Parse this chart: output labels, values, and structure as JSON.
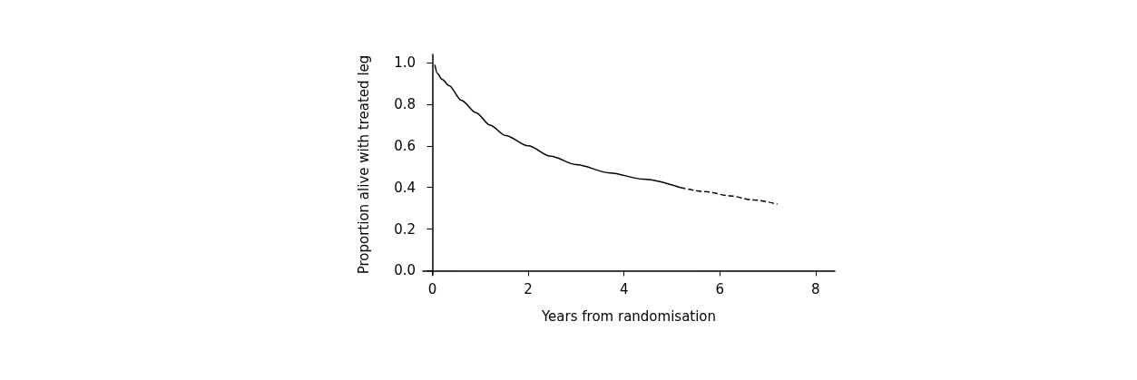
{
  "chart_data": {
    "type": "line",
    "xlabel": "Years from randomisation",
    "ylabel": "Proportion alive with treated leg",
    "xlim": [
      -0.2,
      8.4
    ],
    "xticks": [
      0,
      2,
      4,
      6,
      8
    ],
    "ylim": [
      -0.02,
      1.04
    ],
    "yticks": [
      {
        "value": 0,
        "label": "0.0"
      },
      {
        "value": 0.2,
        "label": "0.2"
      },
      {
        "value": 0.4,
        "label": "0.4"
      },
      {
        "value": 0.6,
        "label": "0.6"
      },
      {
        "value": 0.8,
        "label": "0.8"
      },
      {
        "value": 1,
        "label": "1.0"
      }
    ],
    "grid": false,
    "marker": "none",
    "series": [
      {
        "color": "#000000",
        "line_style": "solid",
        "x": [
          0.05,
          0.1,
          0.2,
          0.35,
          0.6,
          0.91,
          1.2,
          1.53,
          2,
          2.47,
          3,
          3.71,
          4.4,
          5.17
        ],
        "values": [
          0.99,
          0.95,
          0.92,
          0.89,
          0.82,
          0.76,
          0.7,
          0.65,
          0.6,
          0.55,
          0.51,
          0.47,
          0.44,
          0.4
        ]
      },
      {
        "color": "#000000",
        "line_style": "dashed",
        "x": [
          5.17,
          5.7,
          6.2,
          6.7,
          7.2
        ],
        "values": [
          0.4,
          0.38,
          0.36,
          0.34,
          0.32
        ]
      }
    ]
  }
}
